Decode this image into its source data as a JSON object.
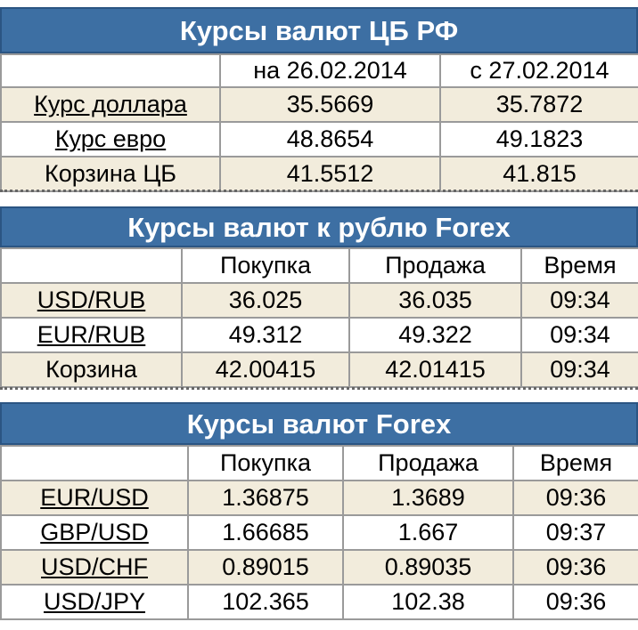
{
  "cb": {
    "title": "Курсы валют ЦБ РФ",
    "headers": [
      "",
      "на 26.02.2014",
      "с 27.02.2014"
    ],
    "rows": [
      {
        "label": "Курс доллара",
        "link": true,
        "v1": "35.5669",
        "v2": "35.7872"
      },
      {
        "label": "Курс евро",
        "link": true,
        "v1": "48.8654",
        "v2": "49.1823"
      },
      {
        "label": "Корзина ЦБ",
        "link": false,
        "v1": "41.5512",
        "v2": "41.815"
      }
    ]
  },
  "forex_rub": {
    "title": "Курсы валют к рублю Forex",
    "headers": [
      "",
      "Покупка",
      "Продажа",
      "Время"
    ],
    "rows": [
      {
        "label": "USD/RUB",
        "link": true,
        "buy": "36.025",
        "sell": "36.035",
        "time": "09:34"
      },
      {
        "label": "EUR/RUB",
        "link": true,
        "buy": "49.312",
        "sell": "49.322",
        "time": "09:34"
      },
      {
        "label": "Корзина",
        "link": false,
        "buy": "42.00415",
        "sell": "42.01415",
        "time": "09:34"
      }
    ]
  },
  "forex": {
    "title": "Курсы валют Forex",
    "headers": [
      "",
      "Покупка",
      "Продажа",
      "Время"
    ],
    "rows": [
      {
        "label": "EUR/USD",
        "link": true,
        "buy": "1.36875",
        "sell": "1.3689",
        "time": "09:36"
      },
      {
        "label": "GBP/USD",
        "link": true,
        "buy": "1.66685",
        "sell": "1.667",
        "time": "09:37"
      },
      {
        "label": "USD/CHF",
        "link": true,
        "buy": "0.89015",
        "sell": "0.89035",
        "time": "09:36"
      },
      {
        "label": "USD/JPY",
        "link": true,
        "buy": "102.365",
        "sell": "102.38",
        "time": "09:36"
      }
    ]
  },
  "colors": {
    "header_bg": "#3d6fa3",
    "row_alt_bg": "#f2ecdc"
  }
}
